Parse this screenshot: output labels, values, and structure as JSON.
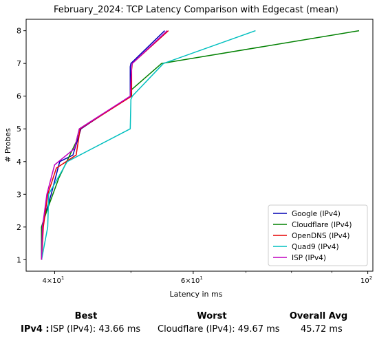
{
  "chart_data": {
    "type": "line",
    "title": "February_2024: TCP Latency Comparison with Edgecast (mean)",
    "xlabel": "Latency in ms",
    "ylabel": "# Probes",
    "xscale": "log",
    "xlim": [
      36.8,
      101.5
    ],
    "ylim": [
      0.65,
      8.35
    ],
    "y_ticks": [
      1,
      2,
      3,
      4,
      5,
      6,
      7,
      8
    ],
    "x_ticks": [
      {
        "value": 40,
        "base": "4×10",
        "exp": "1"
      },
      {
        "value": 60,
        "base": "6×10",
        "exp": "1"
      },
      {
        "value": 100,
        "base": "10",
        "exp": "2"
      }
    ],
    "x_minor_ticks": [
      50,
      70,
      80,
      90
    ],
    "grid": false,
    "legend_position": "lower right",
    "series": [
      {
        "name": "Google (IPv4)",
        "color": "#0000b3",
        "x": [
          38.5,
          38.5,
          39.6,
          40.6,
          42.2,
          43.2,
          49.9,
          49.9,
          50.0,
          55.2
        ],
        "y": [
          1,
          2,
          3,
          4,
          4.2,
          5,
          6,
          6.9,
          7,
          8
        ]
      },
      {
        "name": "Cloudflare (IPv4)",
        "color": "#008000",
        "x": [
          38.5,
          38.5,
          39.1,
          40.5,
          42.6,
          43.0,
          50.0,
          50.1,
          54.7,
          97.5
        ],
        "y": [
          1,
          2,
          2.5,
          3.5,
          4.6,
          5,
          6,
          6.2,
          7,
          8
        ]
      },
      {
        "name": "OpenDNS (IPv4)",
        "color": "#e60000",
        "x": [
          38.5,
          38.7,
          39.2,
          40.2,
          42.6,
          43.1,
          50.1,
          50.1,
          50.2,
          55.8
        ],
        "y": [
          1,
          2,
          3,
          3.8,
          4.2,
          5,
          6,
          6.8,
          7,
          8
        ]
      },
      {
        "name": "Quad9 (IPv4)",
        "color": "#00bfbf",
        "x": [
          38.5,
          39.2,
          39.3,
          41.5,
          49.9,
          50.0,
          50.2,
          55.0,
          72.0
        ],
        "y": [
          1,
          2,
          3,
          4,
          5,
          5.9,
          6,
          7,
          8
        ]
      },
      {
        "name": "ISP (IPv4)",
        "color": "#bf00bf",
        "x": [
          38.5,
          38.6,
          39.1,
          40.0,
          42.4,
          43.0,
          49.9,
          50.1,
          50.2,
          55.6
        ],
        "y": [
          1,
          2,
          3,
          3.9,
          4.4,
          5,
          6,
          6.9,
          7,
          8
        ]
      }
    ]
  },
  "summary": {
    "headers": {
      "best": "Best",
      "worst": "Worst",
      "avg": "Overall Avg"
    },
    "row_label": "IPv4 :",
    "best": "ISP (IPv4): 43.66 ms",
    "worst": "Cloudflare (IPv4): 49.67 ms",
    "avg": "45.72 ms"
  }
}
